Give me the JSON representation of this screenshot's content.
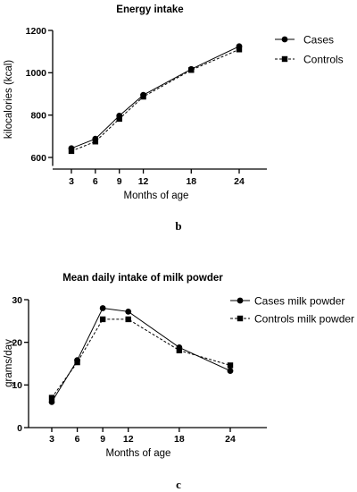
{
  "chart_data": [
    {
      "type": "line",
      "title": "Energy intake",
      "xlabel": "Months of age",
      "ylabel": "kilocalories (kcal)",
      "x": [
        3,
        6,
        9,
        12,
        18,
        24
      ],
      "x_tick_labels": [
        "3",
        "6",
        "9",
        "12",
        "18",
        "24"
      ],
      "yticks": [
        600,
        800,
        1000,
        1200
      ],
      "y_tick_labels": [
        "600",
        "800",
        "1000",
        "1200"
      ],
      "ylim": [
        560,
        1200
      ],
      "series": [
        {
          "name": "Cases",
          "marker": "circle",
          "dash": "solid",
          "values": [
            643,
            688,
            797,
            895,
            1017,
            1125
          ]
        },
        {
          "name": "Controls",
          "marker": "square",
          "dash": "dashed",
          "values": [
            630,
            675,
            782,
            887,
            1013,
            1110
          ]
        }
      ],
      "legend": "top-right",
      "grid": false,
      "panel_label": "b"
    },
    {
      "type": "line",
      "title": "Mean daily intake of milk powder",
      "xlabel": "Months of age",
      "ylabel": "grams/day",
      "x": [
        3,
        6,
        9,
        12,
        18,
        24
      ],
      "x_tick_labels": [
        "3",
        "6",
        "9",
        "12",
        "18",
        "24"
      ],
      "yticks": [
        0,
        10,
        20,
        30
      ],
      "y_tick_labels": [
        "0",
        "10",
        "20",
        "30"
      ],
      "ylim": [
        0,
        30
      ],
      "series": [
        {
          "name": "Cases milk powder",
          "marker": "circle",
          "dash": "solid",
          "values": [
            6.0,
            15.8,
            28.0,
            27.2,
            18.8,
            13.3
          ]
        },
        {
          "name": "Controls milk powder",
          "marker": "square",
          "dash": "dashed",
          "values": [
            7.0,
            15.3,
            25.4,
            25.4,
            18.1,
            14.6
          ]
        }
      ],
      "legend": "top-right",
      "grid": false,
      "panel_label": "c"
    }
  ]
}
